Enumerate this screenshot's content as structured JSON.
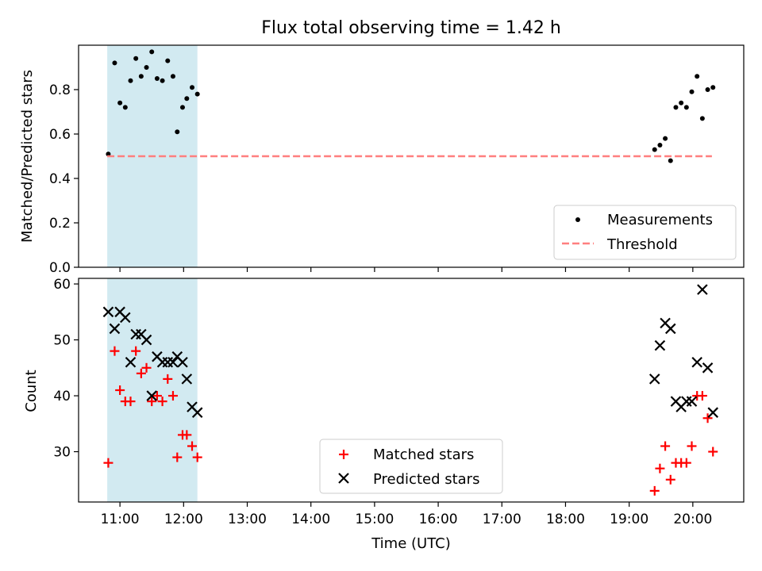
{
  "chart_data": [
    {
      "type": "scatter",
      "title": "Flux total observing time = 1.42 h",
      "xlabel": "",
      "ylabel": "Matched/Predicted stars",
      "xlim": [
        "10:21",
        "20:48"
      ],
      "ylim": [
        0,
        1.0
      ],
      "yticks": [
        0.0,
        0.2,
        0.4,
        0.6,
        0.8
      ],
      "ytick_labels": [
        "0.0",
        "0.2",
        "0.4",
        "0.6",
        "0.8"
      ],
      "grid": false,
      "legend_position": "lower-right",
      "highlight_span": {
        "start": "10:48",
        "end": "12:13",
        "color": "#add8e6"
      },
      "series": [
        {
          "name": "Measurements",
          "marker": "dot",
          "color": "#000000",
          "x": [
            "10:49",
            "10:55",
            "11:00",
            "11:05",
            "11:10",
            "11:15",
            "11:20",
            "11:25",
            "11:30",
            "11:35",
            "11:40",
            "11:45",
            "11:50",
            "11:54",
            "11:59",
            "12:03",
            "12:08",
            "12:13",
            "19:24",
            "19:29",
            "19:34",
            "19:39",
            "19:44",
            "19:49",
            "19:54",
            "19:59",
            "20:04",
            "20:09",
            "20:14",
            "20:19"
          ],
          "y": [
            0.51,
            0.92,
            0.74,
            0.72,
            0.84,
            0.94,
            0.86,
            0.9,
            0.97,
            0.85,
            0.84,
            0.93,
            0.86,
            0.61,
            0.72,
            0.76,
            0.81,
            0.78,
            0.53,
            0.55,
            0.58,
            0.48,
            0.72,
            0.74,
            0.72,
            0.79,
            0.86,
            0.67,
            0.8,
            0.81
          ]
        },
        {
          "name": "Threshold",
          "style": "dashed",
          "color": "#ff7f7f",
          "x": [
            "10:48",
            "20:18"
          ],
          "y": [
            0.5,
            0.5
          ]
        }
      ]
    },
    {
      "type": "scatter",
      "title": "",
      "xlabel": "Time (UTC)",
      "ylabel": "Count",
      "xlim": [
        "10:21",
        "20:48"
      ],
      "ylim": [
        21,
        61
      ],
      "yticks": [
        30,
        40,
        50,
        60
      ],
      "ytick_labels": [
        "30",
        "40",
        "50",
        "60"
      ],
      "xticks": [
        "11:00",
        "12:00",
        "13:00",
        "14:00",
        "15:00",
        "16:00",
        "17:00",
        "18:00",
        "19:00",
        "20:00"
      ],
      "grid": false,
      "legend_position": "lower-center",
      "highlight_span": {
        "start": "10:48",
        "end": "12:13",
        "color": "#add8e6"
      },
      "series": [
        {
          "name": "Matched stars",
          "marker": "plus",
          "color": "#ff0000",
          "x": [
            "10:49",
            "10:55",
            "11:00",
            "11:05",
            "11:10",
            "11:15",
            "11:20",
            "11:25",
            "11:30",
            "11:35",
            "11:40",
            "11:45",
            "11:50",
            "11:54",
            "11:59",
            "12:03",
            "12:08",
            "12:13",
            "19:24",
            "19:29",
            "19:34",
            "19:39",
            "19:44",
            "19:49",
            "19:54",
            "19:59",
            "20:04",
            "20:09",
            "20:14",
            "20:19"
          ],
          "y": [
            28,
            48,
            41,
            39,
            39,
            48,
            44,
            45,
            39,
            40,
            39,
            43,
            40,
            29,
            33,
            33,
            31,
            29,
            23,
            27,
            31,
            25,
            28,
            28,
            28,
            31,
            40,
            40,
            36,
            30
          ]
        },
        {
          "name": "Predicted stars",
          "marker": "x",
          "color": "#000000",
          "x": [
            "10:49",
            "10:55",
            "11:00",
            "11:05",
            "11:10",
            "11:15",
            "11:20",
            "11:25",
            "11:30",
            "11:35",
            "11:40",
            "11:45",
            "11:50",
            "11:54",
            "11:59",
            "12:03",
            "12:08",
            "12:13",
            "19:24",
            "19:29",
            "19:34",
            "19:39",
            "19:44",
            "19:49",
            "19:54",
            "19:59",
            "20:04",
            "20:09",
            "20:14",
            "20:19"
          ],
          "y": [
            55,
            52,
            55,
            54,
            46,
            51,
            51,
            50,
            40,
            47,
            46,
            46,
            46,
            47,
            46,
            43,
            38,
            37,
            43,
            49,
            53,
            52,
            39,
            38,
            39,
            39,
            46,
            59,
            45,
            37
          ]
        }
      ]
    }
  ]
}
